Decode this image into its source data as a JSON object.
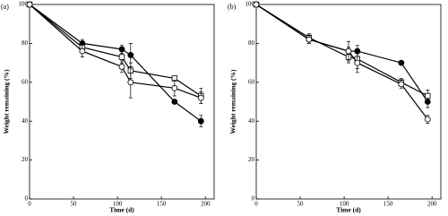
{
  "chart_data": [
    {
      "type": "line",
      "panel_label": "(a)",
      "x_label": "Time (d)",
      "y_label": "Weight remaining (%)",
      "x": [
        0,
        60,
        105,
        115,
        165,
        195
      ],
      "series": [
        {
          "color": "#000000",
          "marker": "circle",
          "filled": true,
          "values": [
            100,
            80,
            77,
            74,
            50,
            40
          ],
          "errors": [
            0,
            2,
            2,
            6,
            1,
            3
          ]
        },
        {
          "color": "#000000",
          "marker": "square",
          "filled": false,
          "values": [
            100,
            78,
            73,
            66,
            62,
            53
          ],
          "errors": [
            0,
            2,
            3,
            4,
            1,
            4
          ]
        },
        {
          "color": "#000000",
          "marker": "circle",
          "filled": false,
          "values": [
            100,
            76,
            68,
            60,
            57,
            52
          ],
          "errors": [
            0,
            3,
            3,
            8,
            4,
            3
          ]
        }
      ],
      "xlim": [
        0,
        210
      ],
      "ylim": [
        0,
        100
      ],
      "xticks": [
        0,
        50,
        100,
        150,
        200
      ],
      "yticks": [
        0,
        20,
        40,
        60,
        80,
        100
      ]
    },
    {
      "type": "line",
      "panel_label": "(b)",
      "x_label": "Time (d)",
      "y_label": "Weight remaining (%)",
      "x": [
        0,
        60,
        105,
        115,
        165,
        195
      ],
      "series": [
        {
          "color": "#000000",
          "marker": "circle",
          "filled": true,
          "values": [
            100,
            82,
            76,
            76,
            70,
            50
          ],
          "errors": [
            0,
            2,
            2,
            3,
            1,
            3
          ]
        },
        {
          "color": "#000000",
          "marker": "square",
          "filled": false,
          "values": [
            100,
            83,
            73,
            72,
            60,
            53
          ],
          "errors": [
            0,
            2,
            3,
            5,
            2,
            3
          ]
        },
        {
          "color": "#000000",
          "marker": "circle",
          "filled": false,
          "values": [
            100,
            82,
            76,
            70,
            59,
            41
          ],
          "errors": [
            0,
            2,
            5,
            5,
            2,
            2
          ]
        }
      ],
      "xlim": [
        0,
        210
      ],
      "ylim": [
        0,
        100
      ],
      "xticks": [
        0,
        50,
        100,
        150,
        200
      ],
      "yticks": [
        0,
        20,
        40,
        60,
        80,
        100
      ]
    }
  ]
}
